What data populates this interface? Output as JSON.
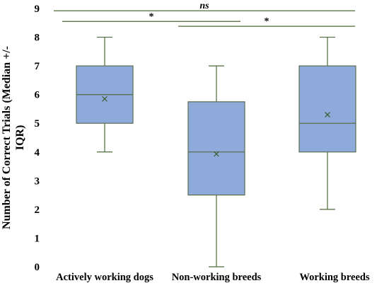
{
  "chart_data": {
    "type": "box",
    "ylabel_lines": [
      "Number of Correct Trials (Median +/-",
      "IQR)"
    ],
    "ylim": [
      0,
      9
    ],
    "yticks": [
      0,
      1,
      2,
      3,
      4,
      5,
      6,
      7,
      8,
      9
    ],
    "grid": false,
    "categories": [
      "Actively working dogs",
      "Non-working breeds",
      "Working breeds"
    ],
    "boxes": [
      {
        "min": 4,
        "q1": 5,
        "median": 6,
        "q3": 7,
        "max": 8,
        "mean": 5.85
      },
      {
        "min": 0,
        "q1": 2.5,
        "median": 4,
        "q3": 5.75,
        "max": 7,
        "mean": 3.93
      },
      {
        "min": 2,
        "q1": 4,
        "median": 5,
        "q3": 7,
        "max": 8,
        "mean": 5.3
      }
    ],
    "significance": [
      {
        "from": 0,
        "to": 2,
        "label": "ns",
        "y": 8.92
      },
      {
        "from": 0,
        "to": 1,
        "label": "*",
        "y": 8.55
      },
      {
        "from": 1,
        "to": 2,
        "label": "*",
        "y": 8.38
      }
    ],
    "colors": {
      "box_fill": "#8eaadb",
      "box_edge": "#5a6e52",
      "whisker": "#4f6a3a",
      "mean_marker": "#3a5a2a"
    }
  }
}
